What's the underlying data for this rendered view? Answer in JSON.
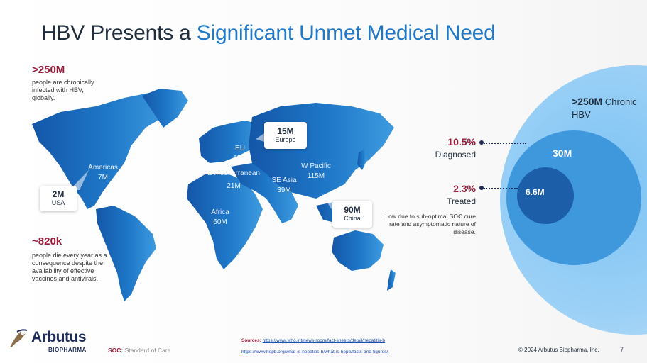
{
  "title": {
    "prefix": "HBV Presents a",
    "highlight": "Significant Unmet Medical Need"
  },
  "left_stats": [
    {
      "value": ">250M",
      "text": "people are chronically infected with HBV, globally."
    },
    {
      "value": "~820k",
      "text": "people die every year as a consequence despite the availability of effective vaccines and antivirals."
    }
  ],
  "regions": [
    {
      "name": "Americas",
      "value": "7M"
    },
    {
      "name": "EU",
      "value": "15M"
    },
    {
      "name": "E Mediterranean",
      "value": "21M"
    },
    {
      "name": "SE Asia",
      "value": "39M"
    },
    {
      "name": "W Pacific",
      "value": "115M"
    },
    {
      "name": "Africa",
      "value": "60M"
    }
  ],
  "callouts": [
    {
      "value": "2M",
      "label": "USA"
    },
    {
      "value": "15M",
      "label": "Europe"
    },
    {
      "value": "90M",
      "label": "China"
    }
  ],
  "funnel": {
    "chronic_value": ">250M",
    "chronic_label": "Chronic HBV",
    "diagnosed_value": "30M",
    "treated_value": "6.6M",
    "diagnosed_pct": "10.5%",
    "diagnosed_label": "Diagnosed",
    "treated_pct": "2.3%",
    "treated_label": "Treated",
    "note": "Low due to sub-optimal SOC cure rate and asymptomatic nature of disease.",
    "colors": {
      "outer": "#9dd1f6",
      "middle": "#3f97dc",
      "inner": "#1d5ea8"
    }
  },
  "footer": {
    "soc_abbr": "SOC:",
    "soc_text": "Standard of Care",
    "sources_label": "Sources:",
    "source_1": "https://www.who.int/news-room/fact-sheets/detail/hepatitis-b",
    "source_2": "https://www.hepb.org/what-is-hepatitis-b/what-is-hepb/facts-and-figures/",
    "copyright": "© 2024 Arbutus Biopharma, Inc.",
    "page": "7"
  },
  "logo": {
    "name": "Arbutus",
    "sub": "BIOPHARMA"
  },
  "colors": {
    "title_highlight": "#1f78c8",
    "accent_red": "#9b1b3a",
    "map_blue": "#1f78c8"
  }
}
